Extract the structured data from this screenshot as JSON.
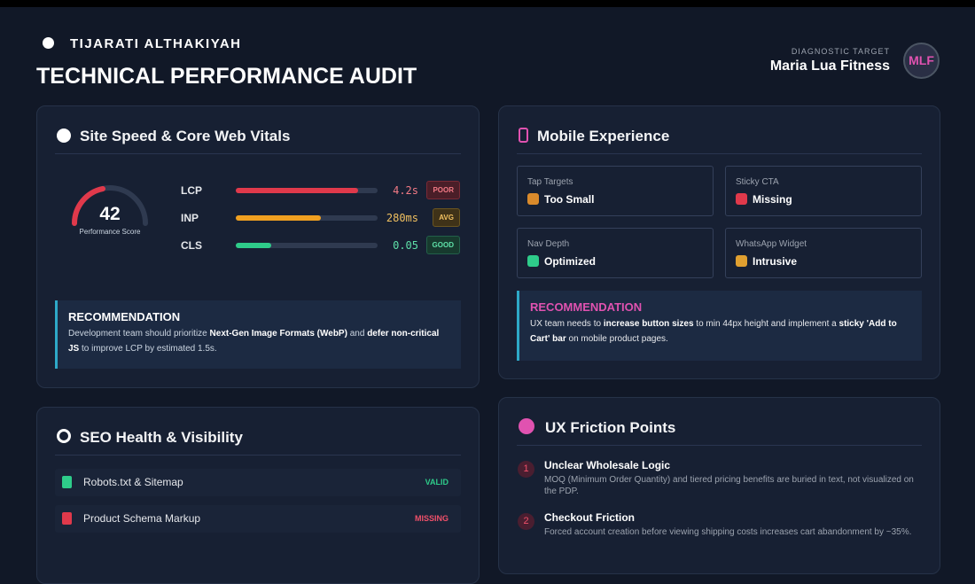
{
  "header": {
    "brand": "TIJARATI ALTHAKIYAH",
    "title": "TECHNICAL PERFORMANCE AUDIT",
    "target_label": "DIAGNOSTIC TARGET",
    "target": "Maria Lua Fitness",
    "avatar": "MLF"
  },
  "speed": {
    "title": "Site Speed & Core Web Vitals",
    "score": "42",
    "score_label": "Performance Score",
    "metrics": [
      {
        "name": "LCP",
        "value": "4.2s",
        "status": "POOR"
      },
      {
        "name": "INP",
        "value": "280ms",
        "status": "AVG"
      },
      {
        "name": "CLS",
        "value": "0.05",
        "status": "GOOD"
      }
    ],
    "recommendation": {
      "title": "RECOMMENDATION",
      "parts": [
        "Development team should prioritize ",
        "Next-Gen Image Formats (WebP)",
        " and ",
        "defer non-critical JS",
        " to improve LCP by estimated 1.5s."
      ]
    }
  },
  "mobile": {
    "title": "Mobile Experience",
    "cells": [
      {
        "label": "Tap Targets",
        "value": "Too Small"
      },
      {
        "label": "Sticky CTA",
        "value": "Missing"
      },
      {
        "label": "Nav Depth",
        "value": "Optimized"
      },
      {
        "label": "WhatsApp Widget",
        "value": "Intrusive"
      }
    ],
    "recommendation": {
      "title": "RECOMMENDATION",
      "parts": [
        "UX team needs to ",
        "increase button sizes",
        " to min 44px height and implement a ",
        "sticky 'Add to Cart' bar",
        " on mobile product pages."
      ]
    }
  },
  "seo": {
    "title": "SEO Health & Visibility",
    "items": [
      {
        "name": "Robots.txt & Sitemap",
        "status": "VALID"
      },
      {
        "name": "Product Schema Markup",
        "status": "MISSING"
      }
    ]
  },
  "ux": {
    "title": "UX Friction Points",
    "points": [
      {
        "number": "1",
        "title": "Unclear Wholesale Logic",
        "text": "MOQ (Minimum Order Quantity) and tiered pricing benefits are buried in text, not visualized on the PDP."
      },
      {
        "number": "2",
        "title": "Checkout Friction",
        "text": "Forced account creation before viewing shipping costs increases cart abandonment by ~35%."
      }
    ]
  }
}
